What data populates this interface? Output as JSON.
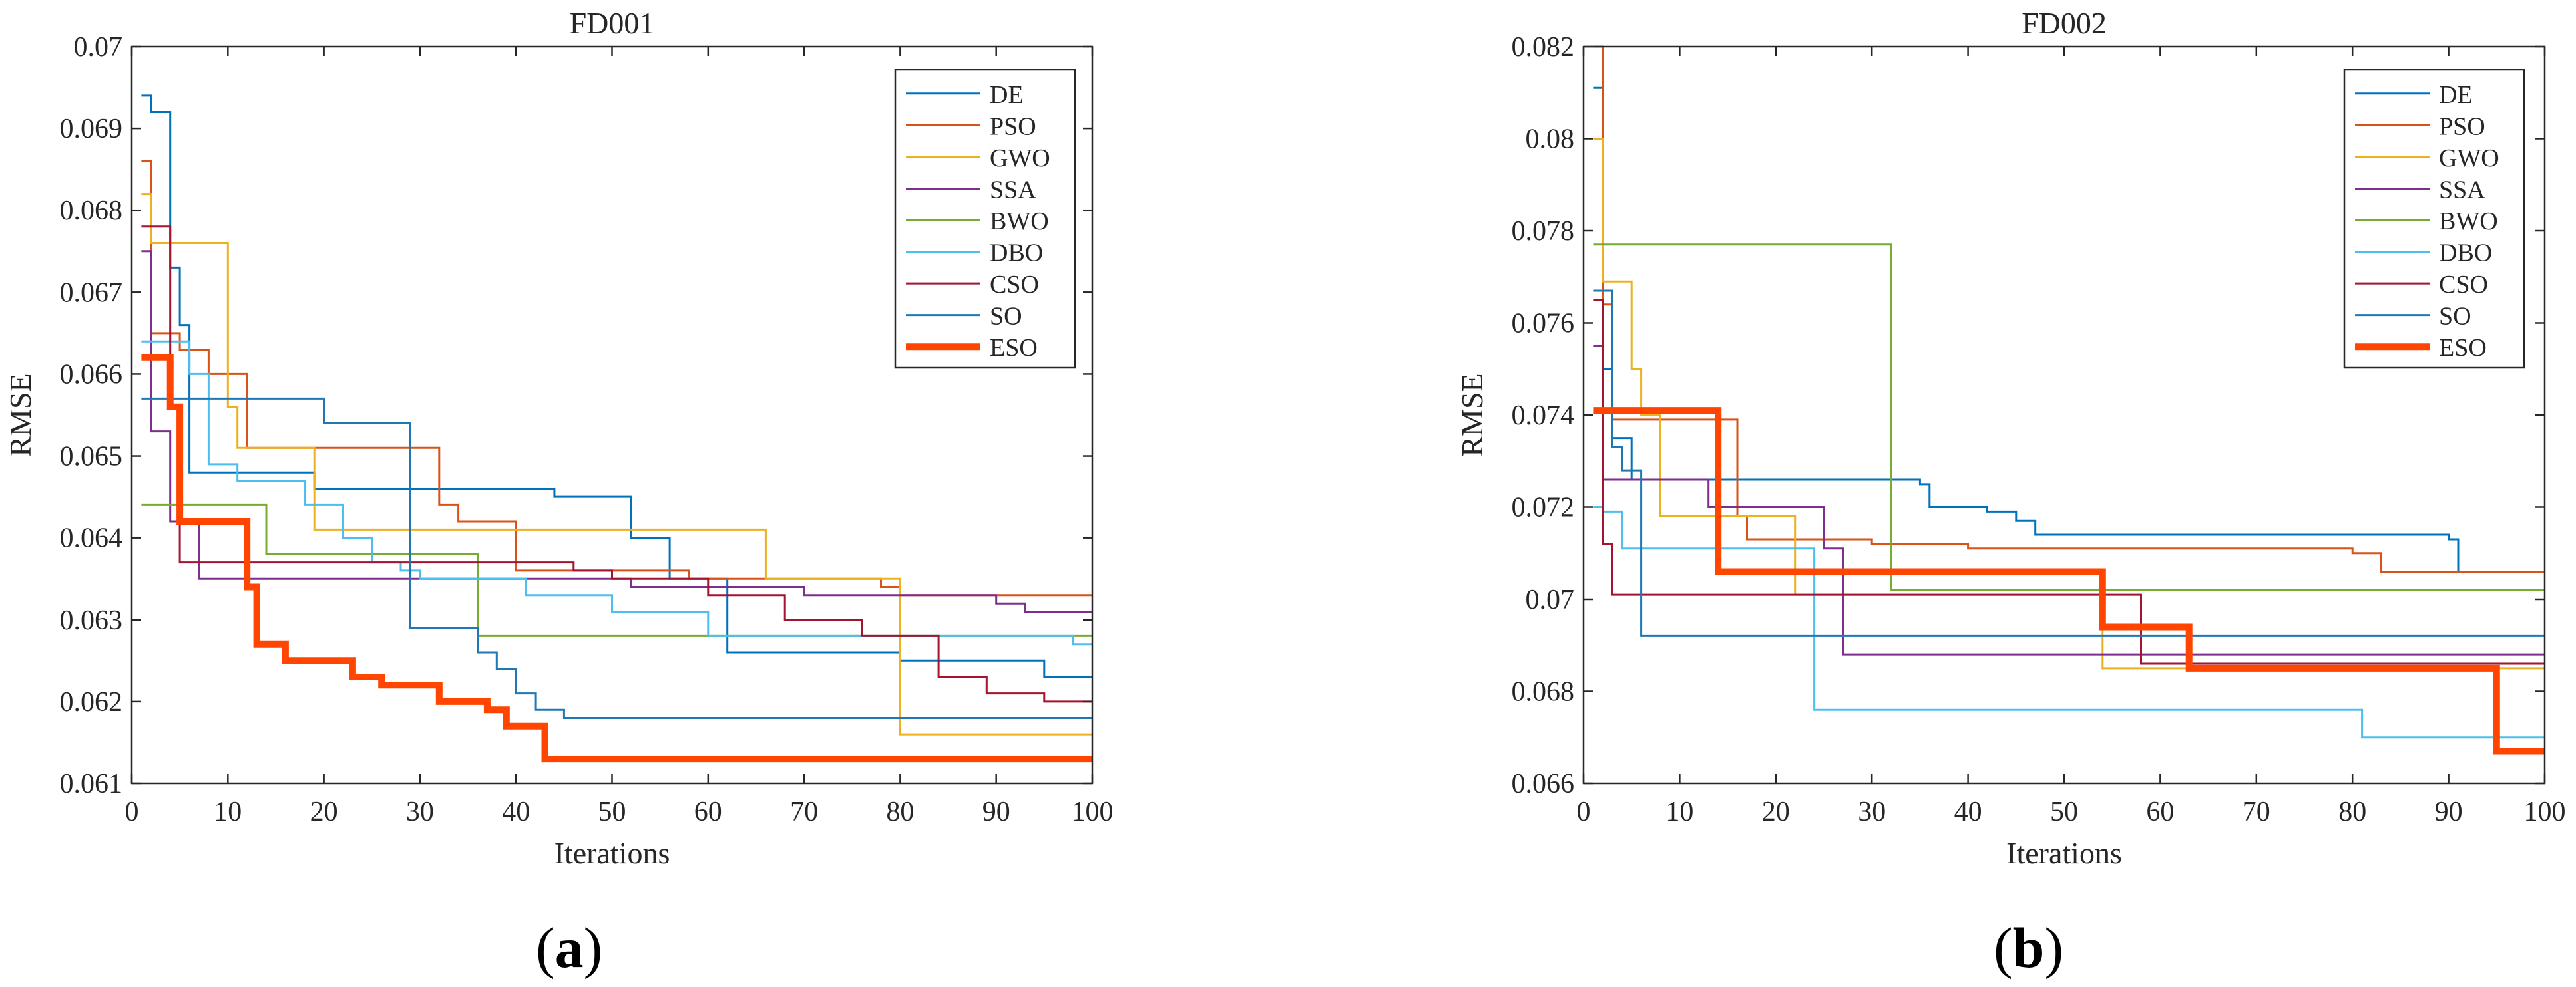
{
  "colors": {
    "DE": "#0072BD",
    "PSO": "#D95319",
    "GWO": "#EDB120",
    "SSA": "#7E2F8E",
    "BWO": "#77AC30",
    "DBO": "#4DBEEE",
    "CSO": "#A2142F",
    "SO": "#1F78B4",
    "ESO": "#FF4500"
  },
  "panel_labels": [
    {
      "open": "(",
      "letter": "a",
      "close": ")"
    },
    {
      "open": "(",
      "letter": "b",
      "close": ")"
    }
  ],
  "chart_data": [
    {
      "type": "line",
      "title": "FD001",
      "xlabel": "Iterations",
      "ylabel": "RMSE",
      "xlim": [
        0,
        100
      ],
      "ylim": [
        0.061,
        0.07
      ],
      "xticks": [
        0,
        10,
        20,
        30,
        40,
        50,
        60,
        70,
        80,
        90,
        100
      ],
      "yticks": [
        0.061,
        0.062,
        0.063,
        0.064,
        0.065,
        0.066,
        0.067,
        0.068,
        0.069,
        0.07
      ],
      "ytick_labels": [
        "0.061",
        "0.062",
        "0.063",
        "0.064",
        "0.065",
        "0.066",
        "0.067",
        "0.068",
        "0.069",
        "0.07"
      ],
      "legend_position": "top-right",
      "series": [
        {
          "name": "DE",
          "steps": [
            [
              1,
              0.0694
            ],
            [
              2,
              0.0692
            ],
            [
              4,
              0.0673
            ],
            [
              5,
              0.0666
            ],
            [
              6,
              0.0648
            ],
            [
              18,
              0.0648
            ],
            [
              19,
              0.0646
            ],
            [
              30,
              0.0646
            ],
            [
              44,
              0.0645
            ],
            [
              52,
              0.064
            ],
            [
              56,
              0.0635
            ],
            [
              62,
              0.0626
            ],
            [
              77,
              0.0626
            ],
            [
              80,
              0.0625
            ],
            [
              85,
              0.0625
            ],
            [
              95,
              0.0623
            ]
          ]
        },
        {
          "name": "PSO",
          "steps": [
            [
              1,
              0.0686
            ],
            [
              2,
              0.0665
            ],
            [
              5,
              0.0663
            ],
            [
              8,
              0.066
            ],
            [
              12,
              0.0651
            ],
            [
              32,
              0.0644
            ],
            [
              34,
              0.0642
            ],
            [
              40,
              0.0636
            ],
            [
              58,
              0.0635
            ],
            [
              78,
              0.0634
            ],
            [
              80,
              0.0633
            ]
          ]
        },
        {
          "name": "GWO",
          "steps": [
            [
              1,
              0.0682
            ],
            [
              2,
              0.0676
            ],
            [
              10,
              0.0656
            ],
            [
              11,
              0.0651
            ],
            [
              15,
              0.0651
            ],
            [
              19,
              0.0641
            ],
            [
              30,
              0.0641
            ],
            [
              40,
              0.0641
            ],
            [
              66,
              0.0635
            ],
            [
              79,
              0.0635
            ],
            [
              80,
              0.0616
            ]
          ]
        },
        {
          "name": "SSA",
          "steps": [
            [
              1,
              0.0675
            ],
            [
              2,
              0.0653
            ],
            [
              4,
              0.0642
            ],
            [
              7,
              0.0635
            ],
            [
              26,
              0.0635
            ],
            [
              33,
              0.0635
            ],
            [
              52,
              0.0634
            ],
            [
              70,
              0.0633
            ],
            [
              90,
              0.0632
            ],
            [
              93,
              0.0631
            ]
          ]
        },
        {
          "name": "BWO",
          "steps": [
            [
              1,
              0.0644
            ],
            [
              13,
              0.0644
            ],
            [
              14,
              0.0638
            ],
            [
              35,
              0.0638
            ],
            [
              36,
              0.0628
            ],
            [
              100,
              0.0628
            ]
          ]
        },
        {
          "name": "DBO",
          "steps": [
            [
              1,
              0.0664
            ],
            [
              2,
              0.0664
            ],
            [
              6,
              0.066
            ],
            [
              8,
              0.0649
            ],
            [
              11,
              0.0647
            ],
            [
              18,
              0.0644
            ],
            [
              22,
              0.064
            ],
            [
              25,
              0.0637
            ],
            [
              28,
              0.0636
            ],
            [
              30,
              0.0635
            ],
            [
              41,
              0.0633
            ],
            [
              50,
              0.0631
            ],
            [
              57,
              0.0631
            ],
            [
              60,
              0.0628
            ],
            [
              98,
              0.0627
            ]
          ]
        },
        {
          "name": "CSO",
          "steps": [
            [
              1,
              0.0678
            ],
            [
              4,
              0.0656
            ],
            [
              5,
              0.0637
            ],
            [
              20,
              0.0637
            ],
            [
              35,
              0.0637
            ],
            [
              46,
              0.0636
            ],
            [
              50,
              0.0635
            ],
            [
              60,
              0.0633
            ],
            [
              68,
              0.063
            ],
            [
              76,
              0.0628
            ],
            [
              84,
              0.0623
            ],
            [
              89,
              0.0621
            ],
            [
              95,
              0.062
            ],
            [
              99,
              0.062
            ]
          ]
        },
        {
          "name": "SO",
          "steps": [
            [
              1,
              0.0657
            ],
            [
              20,
              0.0654
            ],
            [
              28,
              0.0654
            ],
            [
              29,
              0.0629
            ],
            [
              34,
              0.0629
            ],
            [
              36,
              0.0626
            ],
            [
              38,
              0.0624
            ],
            [
              40,
              0.0621
            ],
            [
              42,
              0.0619
            ],
            [
              45,
              0.0618
            ],
            [
              70,
              0.0618
            ],
            [
              100,
              0.0618
            ]
          ]
        },
        {
          "name": "ESO",
          "steps": [
            [
              1,
              0.0662
            ],
            [
              4,
              0.0656
            ],
            [
              5,
              0.0642
            ],
            [
              11,
              0.0642
            ],
            [
              12,
              0.0634
            ],
            [
              13,
              0.0627
            ],
            [
              16,
              0.0625
            ],
            [
              21,
              0.0625
            ],
            [
              23,
              0.0623
            ],
            [
              26,
              0.0622
            ],
            [
              32,
              0.062
            ],
            [
              35,
              0.062
            ],
            [
              37,
              0.0619
            ],
            [
              39,
              0.0617
            ],
            [
              43,
              0.0613
            ],
            [
              100,
              0.0613
            ]
          ]
        }
      ]
    },
    {
      "type": "line",
      "title": "FD002",
      "xlabel": "Iterations",
      "ylabel": "RMSE",
      "xlim": [
        0,
        100
      ],
      "ylim": [
        0.066,
        0.082
      ],
      "xticks": [
        0,
        10,
        20,
        30,
        40,
        50,
        60,
        70,
        80,
        90,
        100
      ],
      "yticks": [
        0.066,
        0.068,
        0.07,
        0.072,
        0.074,
        0.076,
        0.078,
        0.08,
        0.082
      ],
      "ytick_labels": [
        "0.066",
        "0.068",
        "0.07",
        "0.072",
        "0.074",
        "0.076",
        "0.078",
        "0.08",
        "0.082"
      ],
      "legend_position": "top-right",
      "series": [
        {
          "name": "DE",
          "steps": [
            [
              1,
              0.0811
            ],
            [
              2,
              0.075
            ],
            [
              3,
              0.0735
            ],
            [
              5,
              0.0726
            ],
            [
              20,
              0.0726
            ],
            [
              35,
              0.0725
            ],
            [
              36,
              0.072
            ],
            [
              42,
              0.0719
            ],
            [
              45,
              0.0717
            ],
            [
              47,
              0.0714
            ],
            [
              70,
              0.0714
            ],
            [
              90,
              0.0713
            ],
            [
              91,
              0.0706
            ]
          ]
        },
        {
          "name": "PSO",
          "steps": [
            [
              1,
              0.082
            ],
            [
              2,
              0.0764
            ],
            [
              3,
              0.0739
            ],
            [
              16,
              0.0718
            ],
            [
              17,
              0.0713
            ],
            [
              25,
              0.0713
            ],
            [
              30,
              0.0712
            ],
            [
              40,
              0.0711
            ],
            [
              60,
              0.0711
            ],
            [
              80,
              0.071
            ],
            [
              83,
              0.0706
            ]
          ]
        },
        {
          "name": "GWO",
          "steps": [
            [
              1,
              0.08
            ],
            [
              2,
              0.0769
            ],
            [
              5,
              0.075
            ],
            [
              6,
              0.074
            ],
            [
              8,
              0.0718
            ],
            [
              20,
              0.0718
            ],
            [
              22,
              0.0701
            ],
            [
              53,
              0.0701
            ],
            [
              54,
              0.0685
            ],
            [
              100,
              0.0685
            ]
          ]
        },
        {
          "name": "SSA",
          "steps": [
            [
              1,
              0.0755
            ],
            [
              2,
              0.0726
            ],
            [
              12,
              0.0726
            ],
            [
              13,
              0.072
            ],
            [
              24,
              0.072
            ],
            [
              25,
              0.0711
            ],
            [
              27,
              0.0688
            ],
            [
              100,
              0.0688
            ]
          ]
        },
        {
          "name": "BWO",
          "steps": [
            [
              1,
              0.0777
            ],
            [
              31,
              0.0777
            ],
            [
              32,
              0.0702
            ],
            [
              100,
              0.0702
            ]
          ]
        },
        {
          "name": "DBO",
          "steps": [
            [
              1,
              0.072
            ],
            [
              2,
              0.0719
            ],
            [
              4,
              0.0711
            ],
            [
              23,
              0.0711
            ],
            [
              24,
              0.0676
            ],
            [
              80,
              0.0676
            ],
            [
              81,
              0.067
            ],
            [
              100,
              0.067
            ]
          ]
        },
        {
          "name": "CSO",
          "steps": [
            [
              1,
              0.0765
            ],
            [
              2,
              0.0712
            ],
            [
              3,
              0.0701
            ],
            [
              57,
              0.0701
            ],
            [
              58,
              0.0686
            ],
            [
              100,
              0.0686
            ]
          ]
        },
        {
          "name": "SO",
          "steps": [
            [
              1,
              0.0767
            ],
            [
              3,
              0.0733
            ],
            [
              4,
              0.0728
            ],
            [
              6,
              0.0692
            ],
            [
              100,
              0.0692
            ]
          ]
        },
        {
          "name": "ESO",
          "steps": [
            [
              1,
              0.0741
            ],
            [
              13,
              0.0741
            ],
            [
              14,
              0.0706
            ],
            [
              53,
              0.0706
            ],
            [
              54,
              0.0694
            ],
            [
              62,
              0.0694
            ],
            [
              63,
              0.0685
            ],
            [
              94,
              0.0685
            ],
            [
              95,
              0.0667
            ],
            [
              100,
              0.0667
            ]
          ]
        }
      ]
    }
  ]
}
